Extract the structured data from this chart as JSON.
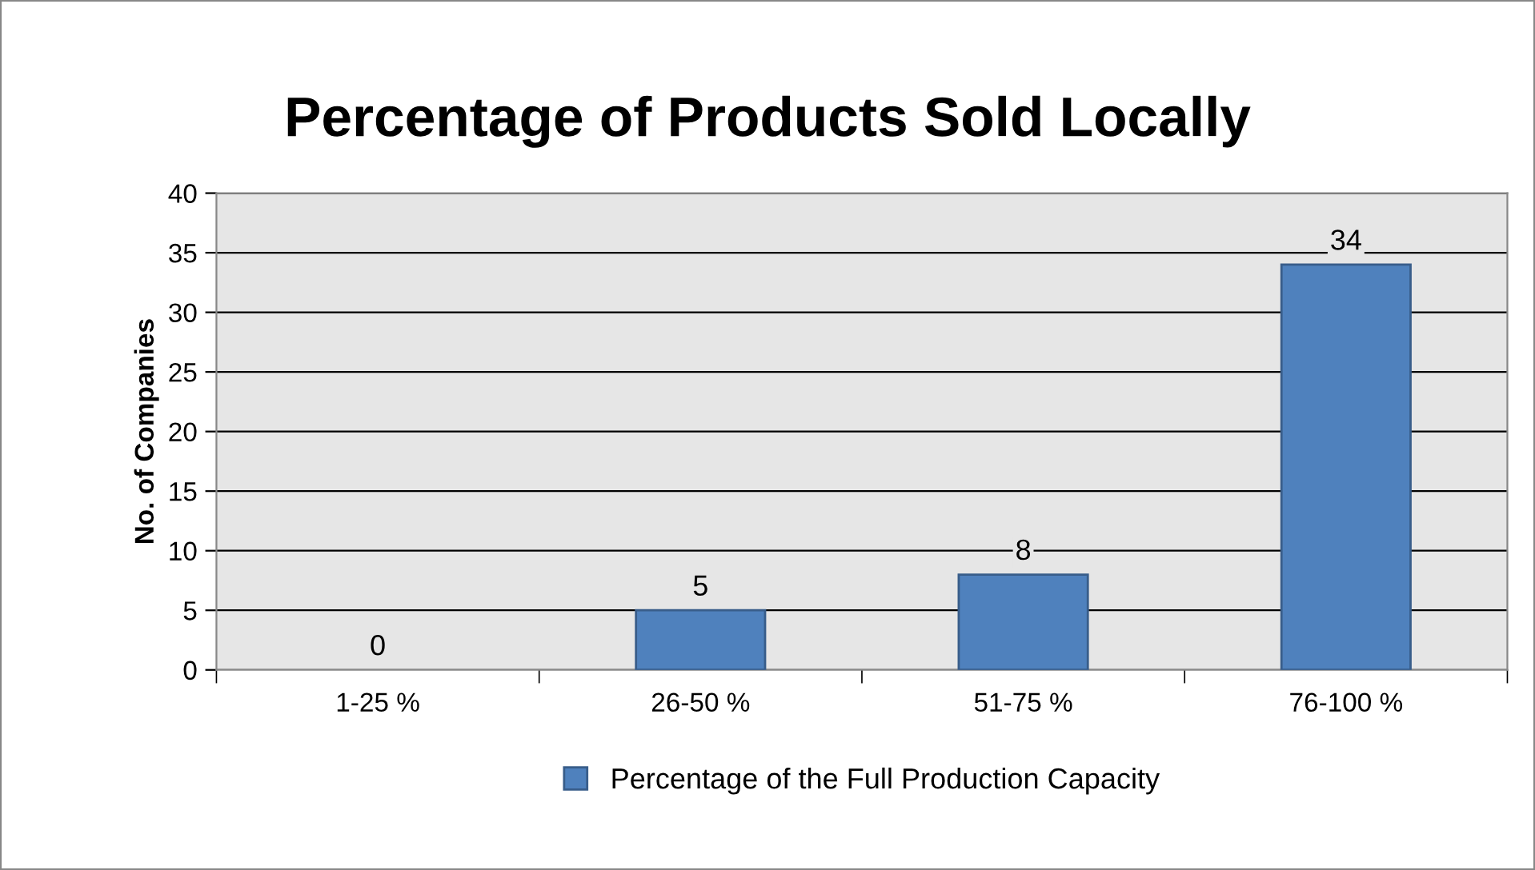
{
  "chart_data": {
    "type": "bar",
    "title": "Percentage of Products Sold Locally",
    "ylabel": "No. of Companies",
    "categories": [
      "1-25 %",
      "26-50 %",
      "51-75 %",
      "76-100 %"
    ],
    "series": [
      {
        "name": "Percentage of the Full Production Capacity",
        "color": "#4f81bd",
        "values": [
          0,
          5,
          8,
          34
        ]
      }
    ],
    "ylim": [
      0,
      40
    ],
    "yticks": [
      0,
      5,
      10,
      15,
      20,
      25,
      30,
      35,
      40
    ],
    "grid": "y",
    "data_labels": true,
    "legend": "bottom"
  }
}
